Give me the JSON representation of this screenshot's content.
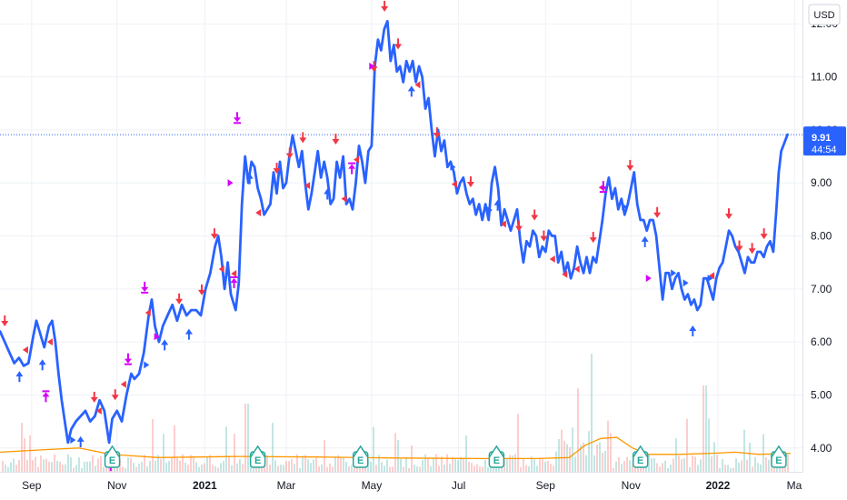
{
  "currency": "USD",
  "last_price": "9.91",
  "countdown": "44:54",
  "colors": {
    "line": "#2962ff",
    "arrow_down": "#f23645",
    "arrow_up": "#2962ff",
    "split": "#d500f9",
    "earnings": "#26a69a",
    "volume_up": "#26a69a",
    "volume_down": "#ef5350",
    "volume_ma": "#ff9800",
    "grid": "#eef1f6",
    "price_line": "#2962ff"
  },
  "chart_data": {
    "type": "line",
    "ylim": [
      3.55,
      12.45
    ],
    "yticks": [
      "12.00",
      "11.00",
      "10.00",
      "9.00",
      "8.00",
      "7.00",
      "6.00",
      "5.00",
      "4.00"
    ],
    "ytick_values": [
      12,
      11,
      10,
      9,
      8,
      7,
      6,
      5,
      4
    ],
    "xlim": [
      0,
      100
    ],
    "xticks": [
      {
        "label": "Sep",
        "x": 4.0,
        "bold": false
      },
      {
        "label": "Nov",
        "x": 14.8,
        "bold": false
      },
      {
        "label": "2021",
        "x": 25.9,
        "bold": true
      },
      {
        "label": "Mar",
        "x": 36.2,
        "bold": false
      },
      {
        "label": "May",
        "x": 47.0,
        "bold": false
      },
      {
        "label": "Jul",
        "x": 58.0,
        "bold": false
      },
      {
        "label": "Sep",
        "x": 69.0,
        "bold": false
      },
      {
        "label": "Nov",
        "x": 79.8,
        "bold": false
      },
      {
        "label": "2022",
        "x": 90.8,
        "bold": true
      },
      {
        "label": "Ma",
        "x": 100.5,
        "bold": false
      }
    ],
    "series": [
      {
        "values": [
          [
            0,
            6.2
          ],
          [
            0.6,
            6.0
          ],
          [
            1.2,
            5.8
          ],
          [
            1.8,
            5.6
          ],
          [
            2.4,
            5.7
          ],
          [
            3,
            5.55
          ],
          [
            3.6,
            5.6
          ],
          [
            4.2,
            6.1
          ],
          [
            4.6,
            6.4
          ],
          [
            5,
            6.2
          ],
          [
            5.6,
            5.9
          ],
          [
            6.2,
            6.3
          ],
          [
            6.6,
            6.4
          ],
          [
            7,
            6.0
          ],
          [
            7.4,
            5.4
          ],
          [
            7.8,
            4.9
          ],
          [
            8.2,
            4.5
          ],
          [
            8.6,
            4.1
          ],
          [
            9.0,
            4.35
          ],
          [
            9.6,
            4.5
          ],
          [
            10.2,
            4.6
          ],
          [
            10.8,
            4.7
          ],
          [
            11.4,
            4.5
          ],
          [
            12,
            4.6
          ],
          [
            12.6,
            4.9
          ],
          [
            13.2,
            4.7
          ],
          [
            13.8,
            4.1
          ],
          [
            14.2,
            4.55
          ],
          [
            14.8,
            4.7
          ],
          [
            15.4,
            4.5
          ],
          [
            16,
            5.0
          ],
          [
            16.6,
            5.4
          ],
          [
            17,
            5.3
          ],
          [
            17.6,
            5.4
          ],
          [
            18.2,
            5.8
          ],
          [
            18.8,
            6.5
          ],
          [
            19.2,
            6.8
          ],
          [
            19.6,
            6.3
          ],
          [
            20.1,
            6.0
          ],
          [
            20.6,
            6.3
          ],
          [
            21.2,
            6.5
          ],
          [
            21.8,
            6.7
          ],
          [
            22.4,
            6.4
          ],
          [
            23,
            6.7
          ],
          [
            23.6,
            6.5
          ],
          [
            24.2,
            6.6
          ],
          [
            24.8,
            6.6
          ],
          [
            25.4,
            6.5
          ],
          [
            26,
            7.0
          ],
          [
            26.6,
            7.3
          ],
          [
            27.2,
            7.8
          ],
          [
            27.6,
            8.0
          ],
          [
            28.0,
            7.6
          ],
          [
            28.4,
            7.0
          ],
          [
            28.8,
            7.5
          ],
          [
            29.2,
            6.9
          ],
          [
            29.8,
            6.6
          ],
          [
            30.2,
            7.1
          ],
          [
            30.6,
            8.6
          ],
          [
            31.0,
            9.5
          ],
          [
            31.4,
            9.0
          ],
          [
            31.8,
            9.4
          ],
          [
            32.2,
            9.3
          ],
          [
            32.6,
            8.9
          ],
          [
            33.0,
            8.7
          ],
          [
            33.4,
            8.4
          ],
          [
            33.8,
            8.5
          ],
          [
            34.2,
            8.6
          ],
          [
            34.6,
            9.2
          ],
          [
            35.0,
            8.8
          ],
          [
            35.4,
            9.4
          ],
          [
            35.8,
            8.9
          ],
          [
            36.2,
            9.0
          ],
          [
            36.6,
            9.5
          ],
          [
            37.0,
            9.9
          ],
          [
            37.4,
            9.6
          ],
          [
            37.8,
            9.3
          ],
          [
            38.2,
            9.6
          ],
          [
            38.6,
            9.0
          ],
          [
            39.0,
            8.5
          ],
          [
            39.4,
            8.8
          ],
          [
            39.8,
            9.2
          ],
          [
            40.2,
            9.6
          ],
          [
            40.6,
            9.1
          ],
          [
            41.0,
            9.4
          ],
          [
            41.4,
            9.1
          ],
          [
            41.8,
            8.6
          ],
          [
            42.2,
            8.7
          ],
          [
            42.6,
            9.4
          ],
          [
            43.0,
            9.1
          ],
          [
            43.4,
            9.5
          ],
          [
            43.8,
            8.6
          ],
          [
            44.2,
            8.7
          ],
          [
            44.6,
            8.5
          ],
          [
            45.0,
            9.0
          ],
          [
            45.4,
            9.7
          ],
          [
            45.8,
            9.4
          ],
          [
            46.2,
            9.0
          ],
          [
            46.6,
            9.6
          ],
          [
            47.0,
            9.7
          ],
          [
            47.4,
            11.2
          ],
          [
            47.8,
            11.7
          ],
          [
            48.2,
            11.5
          ],
          [
            48.6,
            11.9
          ],
          [
            49.0,
            12.05
          ],
          [
            49.4,
            11.3
          ],
          [
            49.8,
            11.6
          ],
          [
            50.2,
            11.1
          ],
          [
            50.6,
            11.2
          ],
          [
            51.0,
            10.9
          ],
          [
            51.4,
            11.3
          ],
          [
            51.8,
            11.1
          ],
          [
            52.2,
            11.3
          ],
          [
            52.6,
            10.9
          ],
          [
            53.0,
            11.2
          ],
          [
            53.4,
            11.0
          ],
          [
            53.8,
            10.4
          ],
          [
            54.2,
            10.6
          ],
          [
            54.6,
            10.0
          ],
          [
            55.0,
            9.5
          ],
          [
            55.4,
            10.0
          ],
          [
            55.8,
            9.6
          ],
          [
            56.2,
            9.8
          ],
          [
            56.6,
            9.3
          ],
          [
            57.0,
            9.4
          ],
          [
            57.4,
            9.2
          ],
          [
            57.8,
            8.8
          ],
          [
            58.2,
            9.0
          ],
          [
            58.6,
            9.1
          ],
          [
            59.0,
            8.8
          ],
          [
            59.4,
            8.6
          ],
          [
            59.8,
            8.7
          ],
          [
            60.2,
            8.4
          ],
          [
            60.6,
            8.6
          ],
          [
            61.0,
            8.3
          ],
          [
            61.4,
            8.6
          ],
          [
            61.8,
            8.3
          ],
          [
            62.2,
            9.0
          ],
          [
            62.6,
            9.3
          ],
          [
            63.0,
            8.9
          ],
          [
            63.4,
            8.2
          ],
          [
            63.8,
            8.5
          ],
          [
            64.2,
            8.3
          ],
          [
            64.6,
            8.1
          ],
          [
            65.0,
            8.3
          ],
          [
            65.4,
            8.5
          ],
          [
            65.8,
            7.9
          ],
          [
            66.2,
            7.5
          ],
          [
            66.6,
            7.9
          ],
          [
            67.0,
            7.8
          ],
          [
            67.4,
            8.1
          ],
          [
            67.8,
            8.0
          ],
          [
            68.2,
            7.6
          ],
          [
            68.6,
            7.8
          ],
          [
            69.0,
            7.7
          ],
          [
            69.4,
            8.1
          ],
          [
            69.8,
            8.0
          ],
          [
            70.2,
            8.0
          ],
          [
            70.6,
            7.5
          ],
          [
            71.0,
            7.7
          ],
          [
            71.4,
            7.3
          ],
          [
            71.8,
            7.5
          ],
          [
            72.2,
            7.2
          ],
          [
            72.6,
            7.4
          ],
          [
            73.0,
            7.8
          ],
          [
            73.4,
            7.5
          ],
          [
            73.8,
            7.3
          ],
          [
            74.2,
            7.6
          ],
          [
            74.6,
            7.3
          ],
          [
            75.0,
            7.6
          ],
          [
            75.4,
            7.5
          ],
          [
            75.8,
            7.9
          ],
          [
            76.2,
            8.3
          ],
          [
            76.6,
            8.8
          ],
          [
            77.0,
            9.1
          ],
          [
            77.4,
            8.7
          ],
          [
            77.8,
            8.9
          ],
          [
            78.2,
            8.5
          ],
          [
            78.6,
            8.7
          ],
          [
            79.0,
            8.4
          ],
          [
            79.4,
            8.6
          ],
          [
            79.8,
            8.9
          ],
          [
            80.2,
            9.2
          ],
          [
            80.6,
            8.6
          ],
          [
            81.0,
            8.3
          ],
          [
            81.4,
            8.3
          ],
          [
            81.8,
            8.1
          ],
          [
            82.2,
            8.3
          ],
          [
            82.6,
            8.3
          ],
          [
            83.0,
            8.0
          ],
          [
            83.4,
            7.4
          ],
          [
            83.8,
            6.8
          ],
          [
            84.2,
            7.3
          ],
          [
            84.6,
            7.3
          ],
          [
            85.0,
            7.0
          ],
          [
            85.4,
            7.2
          ],
          [
            85.8,
            7.3
          ],
          [
            86.2,
            7.0
          ],
          [
            86.6,
            6.8
          ],
          [
            87.0,
            6.9
          ],
          [
            87.4,
            6.7
          ],
          [
            87.8,
            6.8
          ],
          [
            88.2,
            6.6
          ],
          [
            88.6,
            6.7
          ],
          [
            89.0,
            7.2
          ],
          [
            89.4,
            7.2
          ],
          [
            89.8,
            7.0
          ],
          [
            90.2,
            6.8
          ],
          [
            90.6,
            7.2
          ],
          [
            91.0,
            7.4
          ],
          [
            91.4,
            7.5
          ],
          [
            91.8,
            7.8
          ],
          [
            92.2,
            8.1
          ],
          [
            92.6,
            8.0
          ],
          [
            93.0,
            7.8
          ],
          [
            93.4,
            7.7
          ],
          [
            93.8,
            7.5
          ],
          [
            94.2,
            7.3
          ],
          [
            94.6,
            7.6
          ],
          [
            95.0,
            7.5
          ],
          [
            95.4,
            7.5
          ],
          [
            95.8,
            7.7
          ],
          [
            96.2,
            7.7
          ],
          [
            96.6,
            7.6
          ],
          [
            97.0,
            7.8
          ],
          [
            97.4,
            7.9
          ],
          [
            97.8,
            7.7
          ],
          [
            98.2,
            8.5
          ],
          [
            98.5,
            9.2
          ],
          [
            98.8,
            9.6
          ],
          [
            99.2,
            9.75
          ],
          [
            99.6,
            9.91
          ]
        ]
      }
    ],
    "volume": {
      "ma_values": [
        [
          0,
          3.92
        ],
        [
          6,
          3.97
        ],
        [
          10,
          4.0
        ],
        [
          14,
          3.88
        ],
        [
          20,
          3.82
        ],
        [
          30,
          3.84
        ],
        [
          40,
          3.83
        ],
        [
          50,
          3.81
        ],
        [
          60,
          3.8
        ],
        [
          68,
          3.8
        ],
        [
          72,
          3.82
        ],
        [
          74,
          4.05
        ],
        [
          76,
          4.18
        ],
        [
          78,
          4.2
        ],
        [
          80,
          4.0
        ],
        [
          82,
          3.88
        ],
        [
          86,
          3.88
        ],
        [
          90,
          3.9
        ],
        [
          93,
          3.92
        ],
        [
          96,
          3.88
        ],
        [
          100,
          3.9
        ]
      ]
    }
  }
}
